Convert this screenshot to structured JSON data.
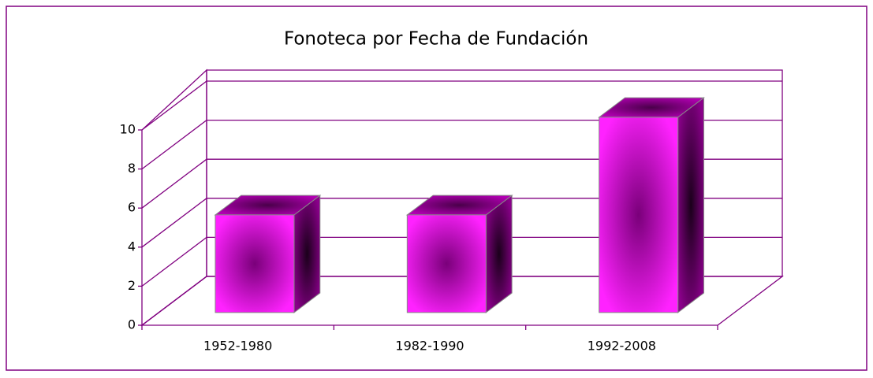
{
  "chart_data": {
    "type": "bar3d",
    "title": "Fonoteca por Fecha de Fundación",
    "categories": [
      "1952-1980",
      "1982-1990",
      "1992-2008"
    ],
    "values": [
      5,
      5,
      10
    ],
    "color": "#ff00ff",
    "ylim": [
      0,
      10
    ],
    "yticks": [
      0,
      2,
      4,
      6,
      8,
      10
    ],
    "grid": true
  }
}
